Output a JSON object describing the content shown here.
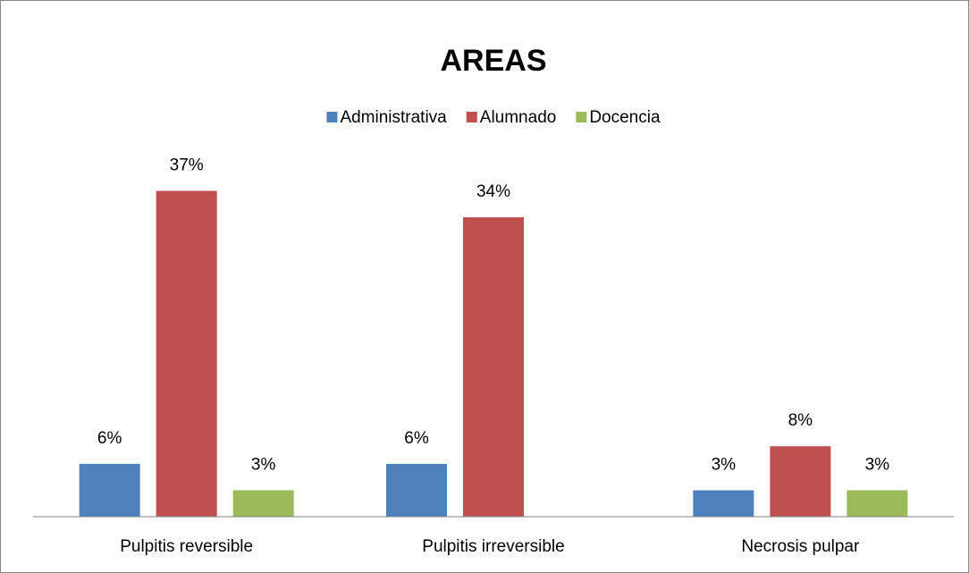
{
  "chart_data": {
    "type": "bar",
    "title": "AREAS",
    "categories": [
      "Pulpitis reversible",
      "Pulpitis irreversible",
      "Necrosis pulpar"
    ],
    "series": [
      {
        "name": "Administrativa",
        "color": "#4f81bd",
        "values": [
          6,
          6,
          3
        ],
        "value_labels": [
          "6%",
          "6%",
          "3%"
        ]
      },
      {
        "name": "Alumnado",
        "color": "#c0504d",
        "values": [
          37,
          34,
          8
        ],
        "value_labels": [
          "37%",
          "34%",
          "8%"
        ]
      },
      {
        "name": "Docencia",
        "color": "#9bbb59",
        "values": [
          3,
          null,
          3
        ],
        "value_labels": [
          "3%",
          null,
          "3%"
        ]
      }
    ],
    "ylim": [
      0,
      40
    ],
    "legend": "top"
  }
}
